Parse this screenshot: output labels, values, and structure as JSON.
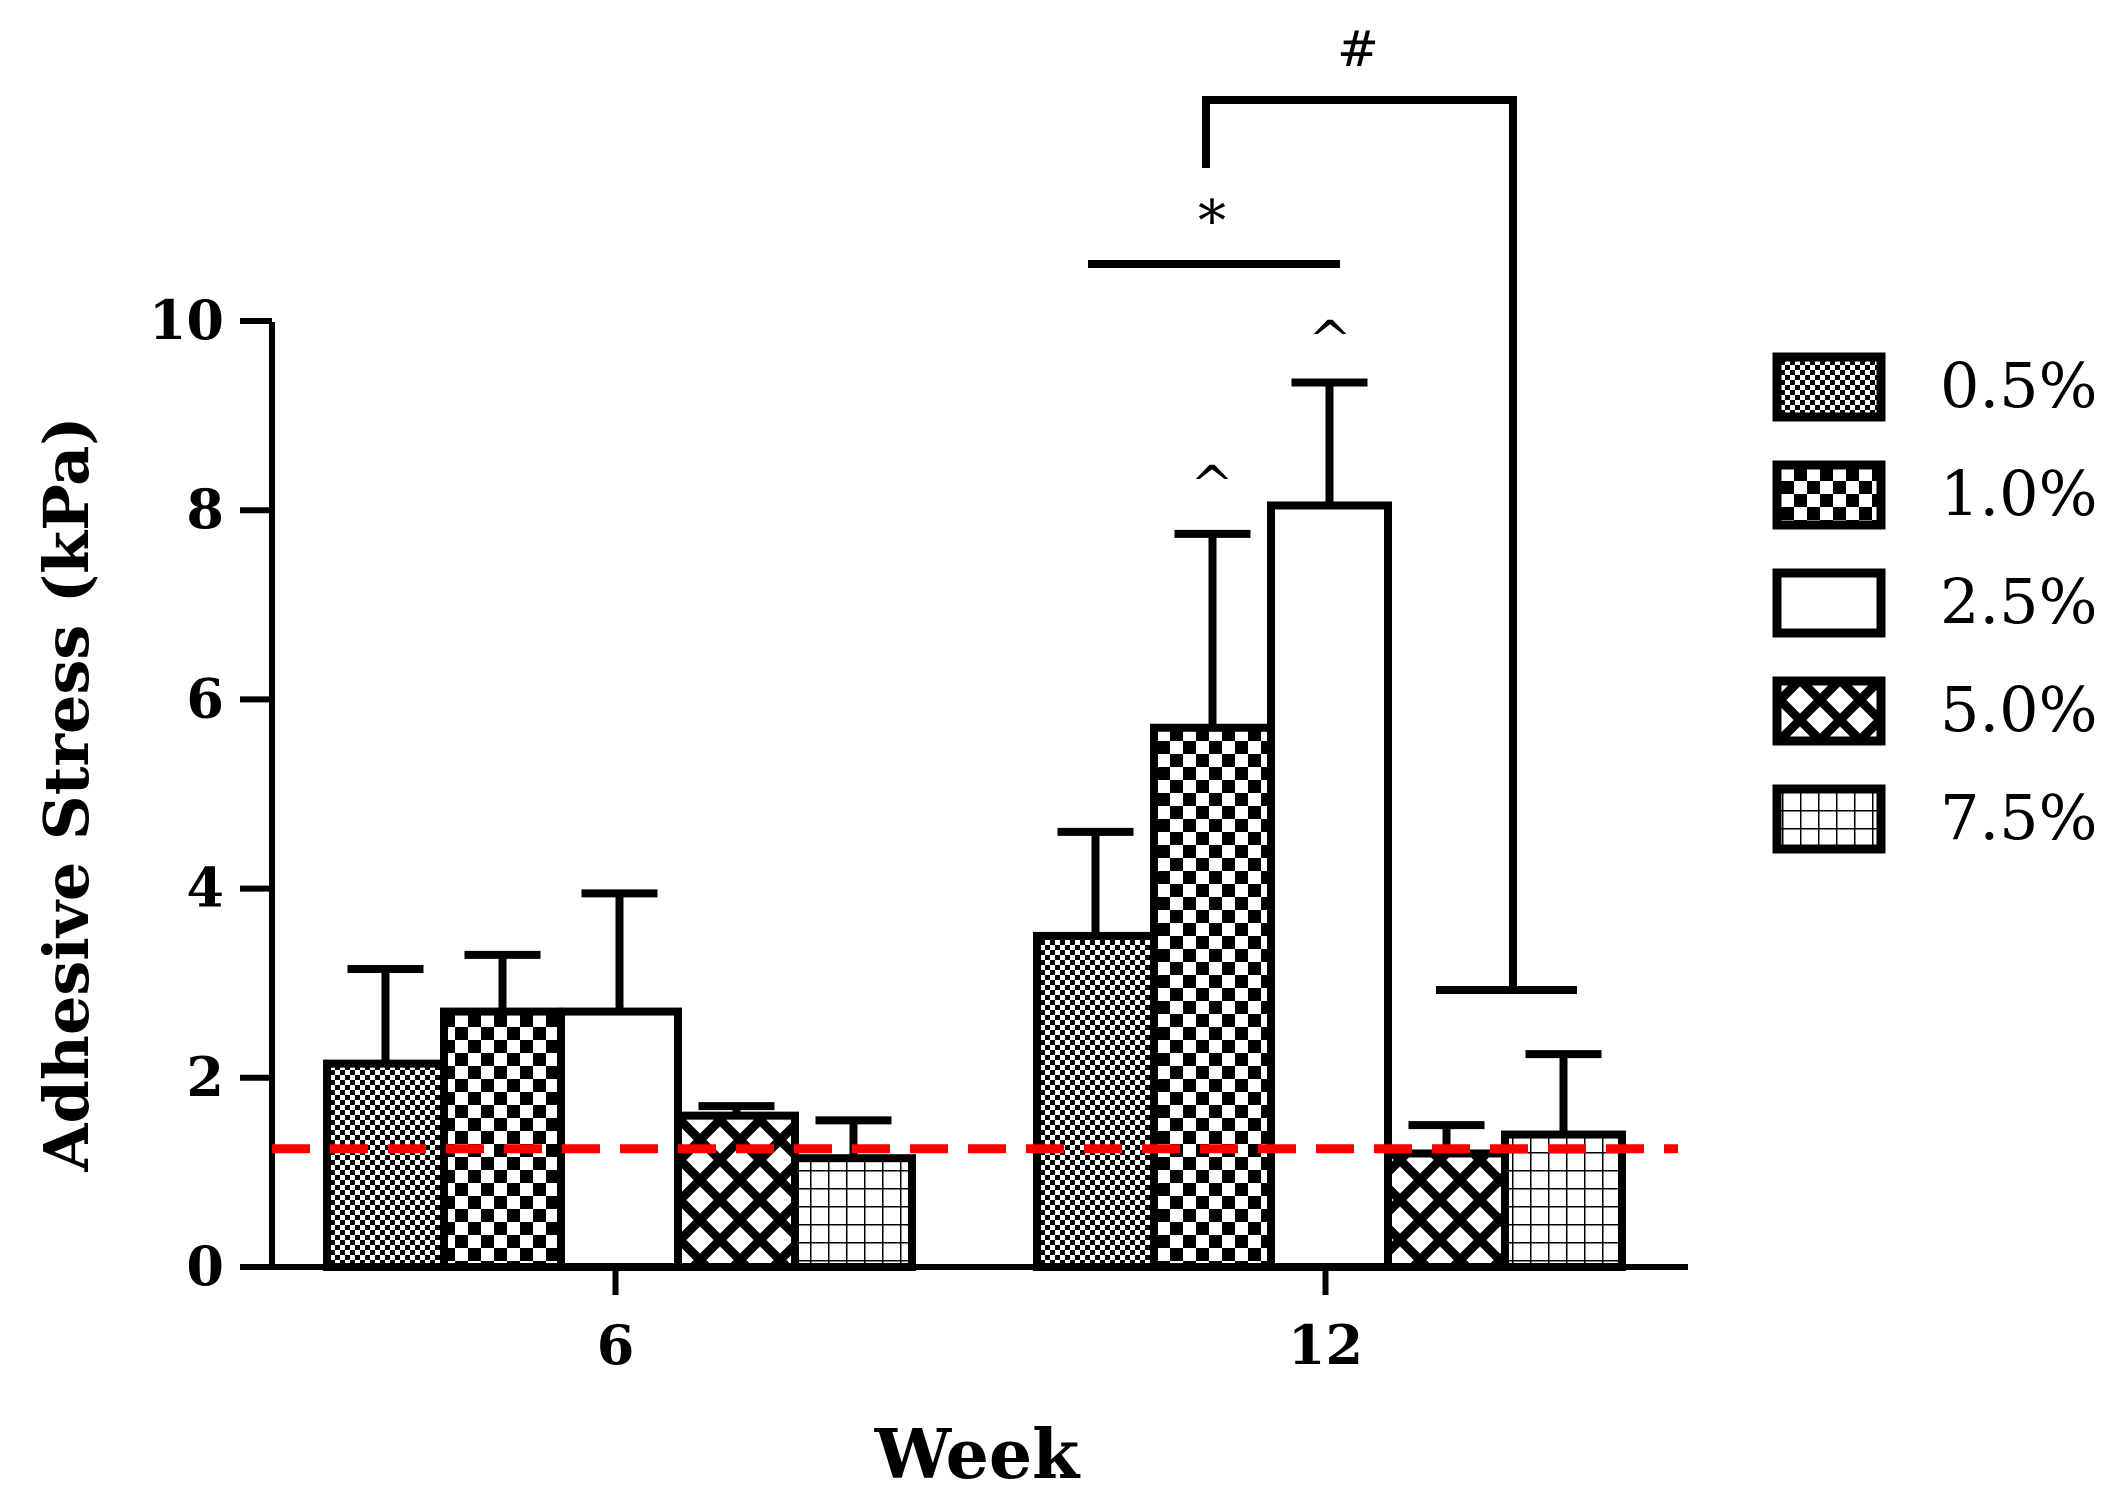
{
  "chart_data": {
    "type": "bar",
    "title": "",
    "xlabel": "Week",
    "ylabel": "Adhesive Stress (kPa)",
    "ylim": [
      0,
      10
    ],
    "yticks": [
      "0",
      "2",
      "4",
      "6",
      "8",
      "10"
    ],
    "categories": [
      "6",
      "12"
    ],
    "series": [
      {
        "name": "0.5%",
        "pattern": "fine-checker",
        "values": [
          2.15,
          3.5
        ],
        "errors": [
          1.0,
          1.1
        ]
      },
      {
        "name": "1.0%",
        "pattern": "checker",
        "values": [
          2.7,
          5.7
        ],
        "errors": [
          0.6,
          2.05
        ]
      },
      {
        "name": "2.5%",
        "pattern": "open",
        "values": [
          2.7,
          8.05
        ],
        "errors": [
          1.25,
          1.3
        ]
      },
      {
        "name": "5.0%",
        "pattern": "crosshatch",
        "values": [
          1.6,
          1.2
        ],
        "errors": [
          0.1,
          0.3
        ]
      },
      {
        "name": "7.5%",
        "pattern": "grid",
        "values": [
          1.15,
          1.4
        ],
        "errors": [
          0.4,
          0.85
        ]
      }
    ],
    "reference_line": {
      "value": 1.25,
      "color": "#ff0000",
      "style": "dashed"
    },
    "annotations": {
      "caret": "^",
      "star": "*",
      "hash": "#"
    },
    "legend": {
      "position": "right"
    }
  }
}
